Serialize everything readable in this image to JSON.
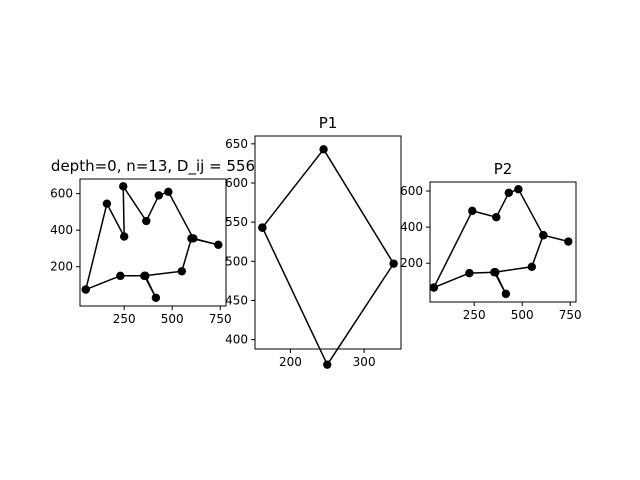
{
  "chart_data": [
    {
      "type": "line",
      "title": "depth=0, n=13, D_ij = 556",
      "xlabel": "",
      "ylabel": "",
      "xlim": [
        20,
        780
      ],
      "ylim": [
        -15,
        680
      ],
      "xticks": [
        250,
        500,
        750
      ],
      "yticks": [
        200,
        400,
        600
      ],
      "series": [
        {
          "x": [
            50,
            230,
            360,
            415,
            355,
            550,
            600,
            740,
            610,
            480,
            430,
            365,
            245,
            250,
            160,
            50
          ],
          "y": [
            75,
            150,
            150,
            30,
            150,
            175,
            355,
            320,
            355,
            610,
            590,
            450,
            640,
            365,
            545,
            75
          ],
          "color": "#000000",
          "marker": "circle"
        }
      ]
    },
    {
      "type": "line",
      "title": "P1",
      "xlabel": "",
      "ylabel": "",
      "xlim": [
        152,
        350
      ],
      "ylim": [
        388,
        660
      ],
      "xticks": [
        200,
        300
      ],
      "yticks": [
        400,
        450,
        500,
        550,
        600,
        650
      ],
      "series": [
        {
          "x": [
            162,
            245,
            340,
            250,
            162
          ],
          "y": [
            543,
            643,
            497,
            368,
            543
          ],
          "color": "#000000",
          "marker": "circle"
        }
      ]
    },
    {
      "type": "line",
      "title": "P2",
      "xlabel": "",
      "ylabel": "",
      "xlim": [
        20,
        780
      ],
      "ylim": [
        -15,
        650
      ],
      "xticks": [
        250,
        500,
        750
      ],
      "yticks": [
        200,
        400,
        600
      ],
      "series": [
        {
          "x": [
            40,
            225,
            360,
            415,
            355,
            550,
            610,
            740,
            610,
            480,
            430,
            365,
            240,
            40
          ],
          "y": [
            65,
            145,
            150,
            30,
            150,
            180,
            355,
            320,
            355,
            610,
            590,
            455,
            490,
            65
          ],
          "color": "#000000",
          "marker": "circle"
        }
      ]
    }
  ]
}
